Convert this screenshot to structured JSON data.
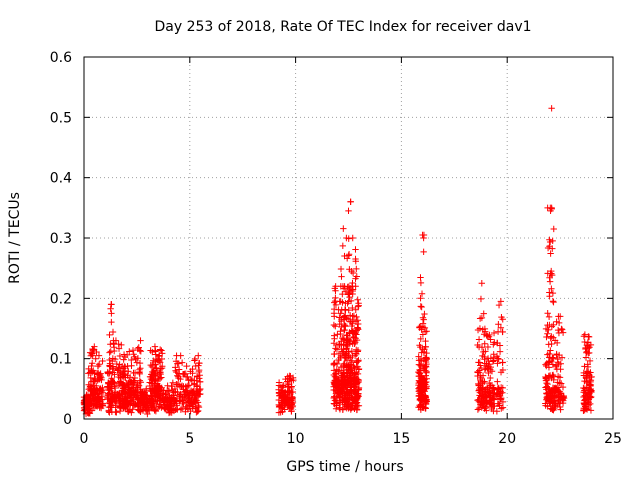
{
  "chart_data": {
    "type": "scatter",
    "title": "Day 253 of 2018, Rate Of TEC Index for receiver dav1",
    "xlabel": "GPS time / hours",
    "ylabel": "ROTI / TECUs",
    "xlim": [
      0,
      25
    ],
    "ylim": [
      0,
      0.6
    ],
    "xticks": [
      0,
      5,
      10,
      15,
      20,
      25
    ],
    "yticks": [
      0,
      0.1,
      0.2,
      0.3,
      0.4,
      0.5,
      0.6
    ],
    "grid": true,
    "marker": "+",
    "color": "#ff0000",
    "clusters": [
      {
        "x": [
          0.0,
          0.3
        ],
        "base": 0.025,
        "spread": 0.018,
        "max": 0.04,
        "n": 70
      },
      {
        "x": [
          0.2,
          0.9
        ],
        "base": 0.04,
        "spread": 0.05,
        "max": 0.12,
        "n": 140
      },
      {
        "x": [
          1.1,
          2.7
        ],
        "base": 0.035,
        "spread": 0.04,
        "max": 0.13,
        "n": 320
      },
      {
        "x": [
          1.2,
          1.4
        ],
        "base": 0.14,
        "spread": 0.04,
        "max": 0.19,
        "n": 12
      },
      {
        "x": [
          2.7,
          3.1
        ],
        "base": 0.025,
        "spread": 0.015,
        "max": 0.05,
        "n": 60
      },
      {
        "x": [
          3.1,
          3.7
        ],
        "base": 0.04,
        "spread": 0.05,
        "max": 0.12,
        "n": 150
      },
      {
        "x": [
          3.7,
          4.3
        ],
        "base": 0.025,
        "spread": 0.02,
        "max": 0.06,
        "n": 80
      },
      {
        "x": [
          4.3,
          5.5
        ],
        "base": 0.035,
        "spread": 0.03,
        "max": 0.105,
        "n": 160
      },
      {
        "x": [
          9.2,
          9.9
        ],
        "base": 0.035,
        "spread": 0.03,
        "max": 0.075,
        "n": 120
      },
      {
        "x": [
          11.8,
          13.0
        ],
        "base": 0.05,
        "spread": 0.09,
        "max": 0.22,
        "n": 460
      },
      {
        "x": [
          12.1,
          12.9
        ],
        "base": 0.2,
        "spread": 0.09,
        "max": 0.36,
        "n": 40
      },
      {
        "x": [
          15.8,
          16.2
        ],
        "base": 0.05,
        "spread": 0.08,
        "max": 0.16,
        "n": 170
      },
      {
        "x": [
          15.9,
          16.1
        ],
        "base": 0.2,
        "spread": 0.08,
        "max": 0.305,
        "n": 14
      },
      {
        "x": [
          18.6,
          19.4
        ],
        "base": 0.04,
        "spread": 0.08,
        "max": 0.15,
        "n": 170
      },
      {
        "x": [
          18.7,
          19.0
        ],
        "base": 0.17,
        "spread": 0.04,
        "max": 0.225,
        "n": 6
      },
      {
        "x": [
          19.5,
          19.8
        ],
        "base": 0.04,
        "spread": 0.08,
        "max": 0.195,
        "n": 50
      },
      {
        "x": [
          21.8,
          22.7
        ],
        "base": 0.04,
        "spread": 0.1,
        "max": 0.17,
        "n": 170
      },
      {
        "x": [
          21.9,
          22.2
        ],
        "base": 0.2,
        "spread": 0.15,
        "max": 0.35,
        "n": 30
      },
      {
        "x": [
          23.6,
          24.0
        ],
        "base": 0.04,
        "spread": 0.06,
        "max": 0.15,
        "n": 100
      }
    ],
    "points": [
      [
        22.1,
        0.515
      ],
      [
        12.6,
        0.36
      ],
      [
        12.5,
        0.345
      ],
      [
        22.1,
        0.35
      ],
      [
        22.05,
        0.345
      ],
      [
        12.4,
        0.3
      ],
      [
        12.7,
        0.3
      ],
      [
        16.0,
        0.305
      ],
      [
        16.05,
        0.3
      ],
      [
        22.2,
        0.315
      ],
      [
        19.7,
        0.195
      ],
      [
        18.8,
        0.225
      ],
      [
        1.3,
        0.19
      ],
      [
        5.4,
        0.105
      ]
    ]
  }
}
